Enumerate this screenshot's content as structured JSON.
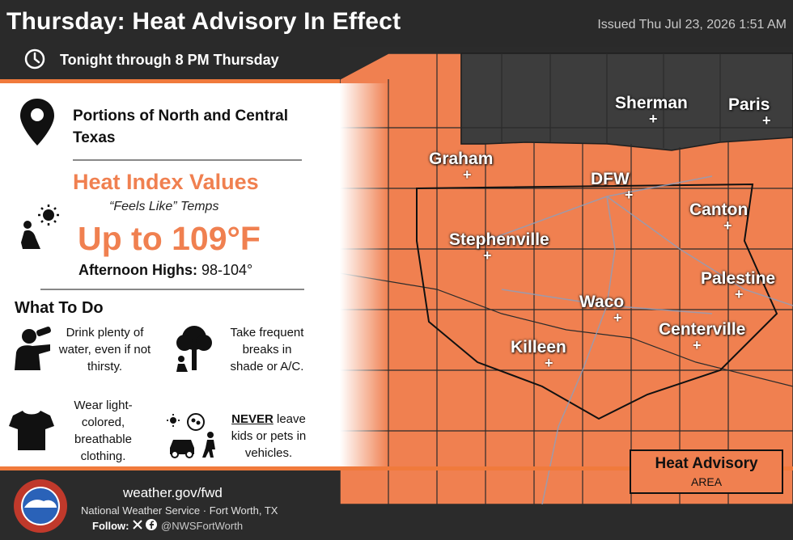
{
  "header": {
    "title": "Thursday: Heat Advisory In Effect",
    "issued": "Issued Thu Jul 23, 2026 1:51 AM",
    "timeframe": "Tonight through 8 PM Thursday"
  },
  "panel": {
    "region": "Portions of North and Central Texas",
    "heat_index_title": "Heat Index Values",
    "feels_like": "“Feels Like” Temps",
    "upto": "Up to 109°F",
    "highs_label": "Afternoon Highs:",
    "highs_value": "98-104°",
    "what_to_do": "What To Do",
    "tips": {
      "water": "Drink plenty of water, even if not thirsty.",
      "shade": "Take frequent breaks in shade or A/C.",
      "clothing": "Wear light-colored, breathable clothing.",
      "never": "NEVER",
      "vehicles_rest": " leave kids or pets in vehicles."
    }
  },
  "map": {
    "cities": [
      {
        "name": "Sherman"
      },
      {
        "name": "Paris"
      },
      {
        "name": "Graham"
      },
      {
        "name": "DFW"
      },
      {
        "name": "Canton"
      },
      {
        "name": "Stephenville"
      },
      {
        "name": "Palestine"
      },
      {
        "name": "Waco"
      },
      {
        "name": "Centerville"
      },
      {
        "name": "Killeen"
      }
    ],
    "legend": {
      "title": "Heat Advisory",
      "subtitle": "AREA"
    },
    "colors": {
      "advisory": "#f08050",
      "none": "#3a3a3a"
    }
  },
  "footer": {
    "website": "weather.gov/fwd",
    "office": "National Weather Service · Fort Worth, TX",
    "follow": "Follow:",
    "handle": "@NWSFortWorth"
  }
}
